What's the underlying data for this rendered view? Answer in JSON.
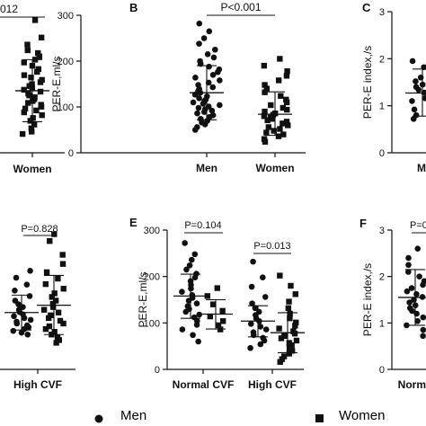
{
  "chart_data": [
    {
      "panel": "",
      "type": "scatter",
      "ylabel": "",
      "ylim": [
        0,
        300
      ],
      "categories": [
        "Women"
      ],
      "series": [
        {
          "name": "Women",
          "values": [
            282,
            245,
            230,
            218,
            212,
            205,
            198,
            192,
            185,
            178,
            172,
            165,
            160,
            155,
            150,
            146,
            142,
            138,
            134,
            130,
            126,
            122,
            118,
            114,
            110,
            106,
            102,
            98,
            94,
            90,
            86,
            80,
            74,
            68,
            60,
            52,
            45,
            40
          ],
          "mean": 132,
          "sd_upper": 198,
          "sd_lower": 66
        }
      ],
      "pvalue": "012"
    },
    {
      "panel": "B",
      "type": "scatter",
      "ylabel": "PER-E,ml/s",
      "ylim": [
        0,
        300
      ],
      "yticks": [
        0,
        100,
        200,
        300
      ],
      "categories": [
        "Men",
        "Women"
      ],
      "series": [
        {
          "name": "Men",
          "values": [
            282,
            265,
            250,
            238,
            225,
            215,
            208,
            200,
            194,
            188,
            182,
            176,
            170,
            164,
            158,
            153,
            148,
            143,
            139,
            135,
            131,
            127,
            123,
            119,
            116,
            113,
            110,
            107,
            104,
            101,
            98,
            95,
            92,
            89,
            86,
            82,
            78,
            74,
            70,
            66,
            62,
            56,
            50
          ],
          "mean": 131,
          "sd_upper": 190,
          "sd_lower": 72
        },
        {
          "name": "Women",
          "values": [
            205,
            190,
            178,
            168,
            158,
            148,
            140,
            132,
            124,
            116,
            110,
            104,
            98,
            94,
            90,
            86,
            83,
            80,
            77,
            74,
            71,
            68,
            64,
            60,
            56,
            52,
            48,
            44,
            40,
            36,
            30,
            24
          ],
          "mean": 84,
          "sd_upper": 133,
          "sd_lower": 38
        }
      ],
      "pvalue": "P<0.001"
    },
    {
      "panel": "C",
      "type": "scatter",
      "ylabel": "PER-E index,/s",
      "ylim": [
        0,
        3
      ],
      "yticks": [
        0,
        1,
        2,
        3
      ],
      "categories": [
        "M"
      ],
      "series": [
        {
          "name": "Men",
          "values": [
            1.95,
            1.82,
            1.7,
            1.6,
            1.52,
            1.45,
            1.4,
            1.34,
            1.28,
            1.22,
            1.16,
            1.1,
            1.04,
            0.98,
            0.92,
            0.86,
            0.8,
            0.72
          ],
          "mean": 1.27,
          "sd_upper": 1.78,
          "sd_lower": 0.78
        }
      ]
    },
    {
      "panel": "",
      "type": "scatter",
      "ylabel": "",
      "ylim": [
        0,
        300
      ],
      "categories": [
        "High CVF"
      ],
      "series": [
        {
          "name": "Men",
          "values": [
            215,
            200,
            185,
            172,
            160,
            150,
            142,
            136,
            130,
            125,
            120,
            116,
            112,
            108,
            104,
            100,
            96,
            92,
            88,
            84,
            80,
            76
          ],
          "mean": 124,
          "sd_upper": 162,
          "sd_lower": 86
        },
        {
          "name": "Women",
          "values": [
            295,
            280,
            250,
            230,
            212,
            198,
            186,
            176,
            166,
            158,
            150,
            143,
            136,
            130,
            124,
            118,
            112,
            106,
            100,
            94,
            88,
            82,
            76,
            70,
            64,
            58
          ],
          "mean": 140,
          "sd_upper": 205,
          "sd_lower": 76
        }
      ],
      "pvalue": "P=0.828"
    },
    {
      "panel": "E",
      "type": "scatter",
      "ylabel": "PER-E,ml/s",
      "ylim": [
        0,
        300
      ],
      "yticks": [
        0,
        100,
        200,
        300
      ],
      "categories": [
        "Normal CVF",
        "High CVF"
      ],
      "series": [
        {
          "name": "Men",
          "values": [
            [
              0,
              272
            ],
            [
              0,
              248
            ],
            [
              0,
              236
            ],
            [
              0,
              224
            ],
            [
              0,
              215
            ],
            [
              0,
              206
            ],
            [
              0,
              198
            ],
            [
              0,
              190
            ],
            [
              0,
              182
            ],
            [
              0,
              174
            ],
            [
              0,
              167
            ],
            [
              0,
              160
            ],
            [
              0,
              154
            ],
            [
              0,
              148
            ],
            [
              0,
              142
            ],
            [
              0,
              136
            ],
            [
              0,
              130
            ],
            [
              0,
              124
            ],
            [
              0,
              118
            ],
            [
              0,
              112
            ],
            [
              0,
              104
            ],
            [
              0,
              96
            ],
            [
              0,
              86
            ],
            [
              0,
              74
            ],
            [
              0,
              60
            ],
            [
              1,
              232
            ],
            [
              1,
              198
            ],
            [
              1,
              178
            ],
            [
              1,
              156
            ],
            [
              1,
              142
            ],
            [
              1,
              132
            ],
            [
              1,
              124
            ],
            [
              1,
              117
            ],
            [
              1,
              110
            ],
            [
              1,
              104
            ],
            [
              1,
              98
            ],
            [
              1,
              92
            ],
            [
              1,
              86
            ],
            [
              1,
              80
            ],
            [
              1,
              74
            ],
            [
              1,
              68
            ],
            [
              1,
              62
            ],
            [
              1,
              54
            ],
            [
              1,
              46
            ]
          ]
        },
        {
          "name": "Women",
          "values": [
            [
              0,
              175
            ],
            [
              0,
              158
            ],
            [
              0,
              140
            ],
            [
              0,
              126
            ],
            [
              0,
              114
            ],
            [
              0,
              104
            ],
            [
              0,
              95
            ],
            [
              0,
              86
            ],
            [
              1,
              202
            ],
            [
              1,
              180
            ],
            [
              1,
              162
            ],
            [
              1,
              146
            ],
            [
              1,
              132
            ],
            [
              1,
              120
            ],
            [
              1,
              110
            ],
            [
              1,
              101
            ],
            [
              1,
              94
            ],
            [
              1,
              88
            ],
            [
              1,
              82
            ],
            [
              1,
              77
            ],
            [
              1,
              72
            ],
            [
              1,
              67
            ],
            [
              1,
              62
            ],
            [
              1,
              57
            ],
            [
              1,
              52
            ],
            [
              1,
              46
            ],
            [
              1,
              40
            ],
            [
              1,
              34
            ],
            [
              1,
              28
            ],
            [
              1,
              22
            ],
            [
              1,
              16
            ]
          ]
        }
      ],
      "summary": [
        {
          "series": "Men",
          "category": 0,
          "mean": 158,
          "sd_upper": 205,
          "sd_lower": 110
        },
        {
          "series": "Women",
          "category": 0,
          "mean": 119,
          "sd_upper": 150,
          "sd_lower": 87
        },
        {
          "series": "Men",
          "category": 1,
          "mean": 104,
          "sd_upper": 137,
          "sd_lower": 70
        },
        {
          "series": "Women",
          "category": 1,
          "mean": 79,
          "sd_upper": 122,
          "sd_lower": 36
        }
      ],
      "pvalues": [
        "P=0.104",
        "P=0.013"
      ]
    },
    {
      "panel": "F",
      "type": "scatter",
      "ylabel": "PER-E index,/s",
      "ylim": [
        0,
        3
      ],
      "yticks": [
        0,
        1,
        2,
        3
      ],
      "categories": [
        "Norm"
      ],
      "series": [
        {
          "name": "Men",
          "values": [
            2.6,
            2.4,
            2.25,
            2.1,
            2.0,
            1.9,
            1.82,
            1.75,
            1.68,
            1.62,
            1.56,
            1.5,
            1.44,
            1.38,
            1.32,
            1.26,
            1.2,
            1.12,
            1.04,
            0.95,
            0.85,
            0.72
          ],
          "mean": 1.55,
          "sd_upper": 2.15,
          "sd_lower": 0.95
        }
      ],
      "pvalue": "P=0"
    }
  ],
  "legend": {
    "men_label": "Men",
    "women_label": "Women"
  }
}
